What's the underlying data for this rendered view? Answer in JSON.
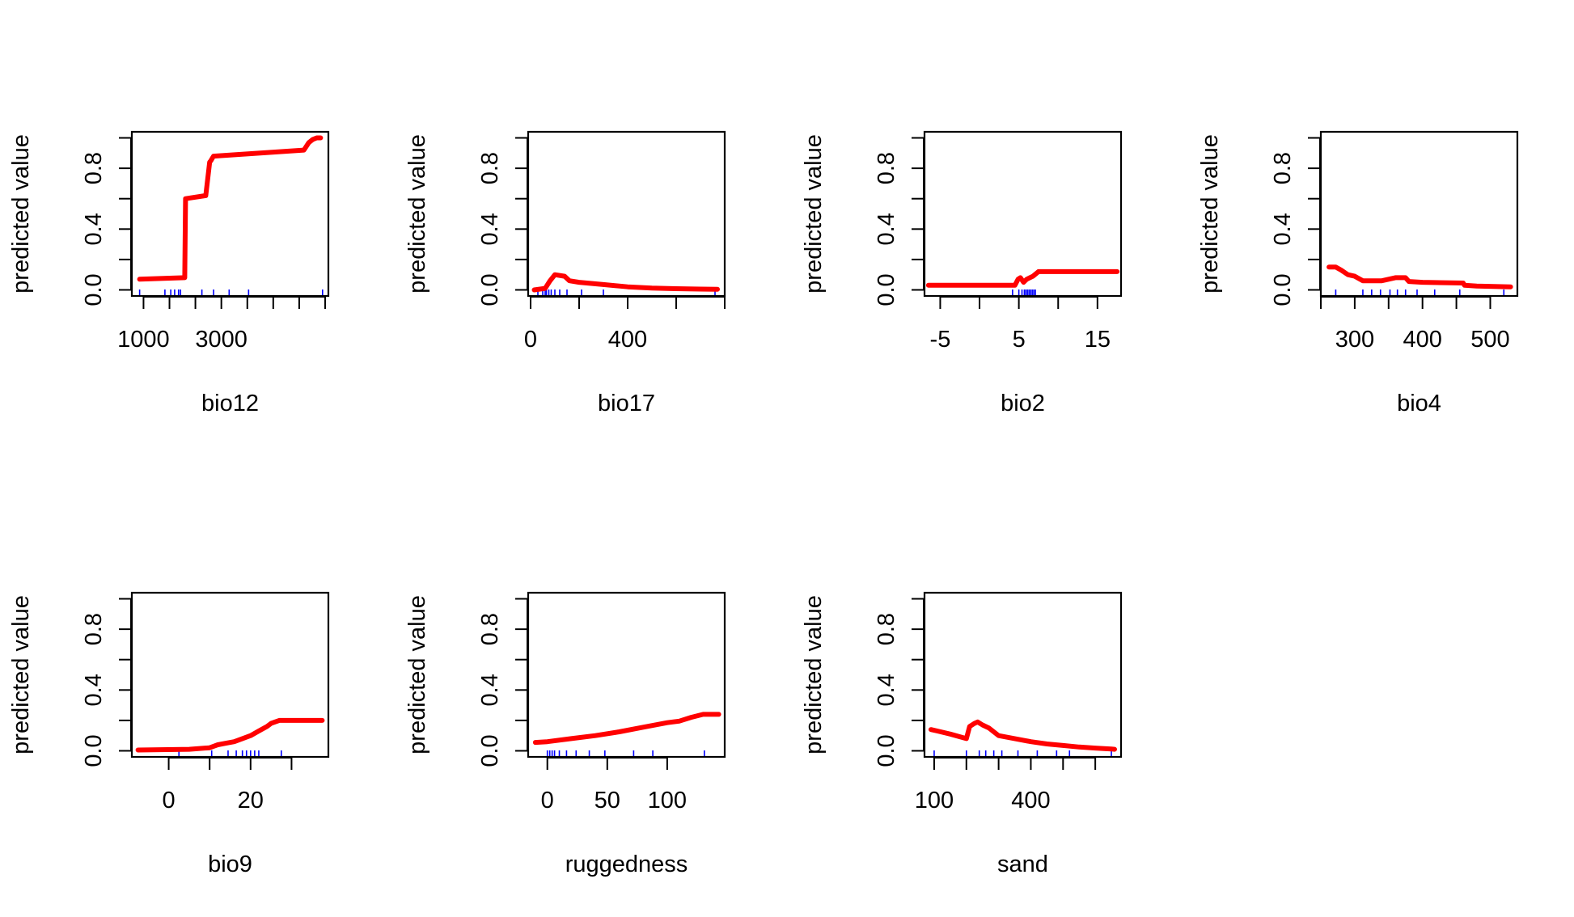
{
  "colors": {
    "curve": "#ff0000",
    "rug": "#0000ff",
    "axis": "#000000"
  },
  "chart_data": [
    {
      "type": "line",
      "xlabel": "bio12",
      "ylabel": "predicted value",
      "xlim": [
        700,
        5750
      ],
      "ylim": [
        0,
        1
      ],
      "xticks": [
        1000,
        1667,
        2333,
        3000,
        3667,
        4333,
        5000,
        5667
      ],
      "xtick_labels": [
        "1000",
        "",
        "",
        "3000",
        "",
        "",
        "",
        ""
      ],
      "yticks": [
        0.0,
        0.2,
        0.4,
        0.6,
        0.8,
        1.0
      ],
      "ytick_labels": [
        "0.0",
        "",
        "0.4",
        "",
        "0.8",
        ""
      ],
      "x": [
        900,
        2060,
        2080,
        2600,
        2700,
        2730,
        2800,
        5120,
        5250,
        5350,
        5450,
        5550
      ],
      "y": [
        0.07,
        0.08,
        0.6,
        0.62,
        0.84,
        0.85,
        0.88,
        0.92,
        0.97,
        0.99,
        1.0,
        1.0
      ],
      "rug": [
        900,
        1550,
        1700,
        1800,
        1900,
        1950,
        2500,
        2800,
        3200,
        3700,
        5600
      ]
    },
    {
      "type": "line",
      "xlabel": "bio17",
      "ylabel": "predicted value",
      "xlim": [
        -10,
        800
      ],
      "ylim": [
        0,
        1
      ],
      "xticks": [
        0,
        200,
        400,
        600,
        800
      ],
      "xtick_labels": [
        "0",
        "",
        "400",
        "",
        ""
      ],
      "yticks": [
        0.0,
        0.2,
        0.4,
        0.6,
        0.8,
        1.0
      ],
      "ytick_labels": [
        "0.0",
        "",
        "0.4",
        "",
        "0.8",
        ""
      ],
      "x": [
        15,
        60,
        80,
        100,
        140,
        160,
        200,
        300,
        400,
        500,
        600,
        700,
        770
      ],
      "y": [
        0.0,
        0.01,
        0.06,
        0.1,
        0.09,
        0.06,
        0.05,
        0.035,
        0.02,
        0.012,
        0.008,
        0.005,
        0.004
      ],
      "rug": [
        30,
        50,
        60,
        65,
        75,
        85,
        100,
        120,
        150,
        210,
        300,
        760
      ]
    },
    {
      "type": "line",
      "xlabel": "bio2",
      "ylabel": "predicted value",
      "xlim": [
        -7,
        18
      ],
      "ylim": [
        0,
        1
      ],
      "xticks": [
        -5,
        0,
        5,
        10,
        15
      ],
      "xtick_labels": [
        "-5",
        "",
        "5",
        "",
        "15"
      ],
      "yticks": [
        0.0,
        0.2,
        0.4,
        0.6,
        0.8,
        1.0
      ],
      "ytick_labels": [
        "0.0",
        "",
        "0.4",
        "",
        "0.8",
        ""
      ],
      "x": [
        -6.5,
        4.5,
        4.9,
        5.2,
        5.6,
        6.0,
        6.8,
        7.5,
        17.5
      ],
      "y": [
        0.03,
        0.03,
        0.07,
        0.08,
        0.05,
        0.07,
        0.09,
        0.12,
        0.12
      ],
      "rug": [
        4.2,
        5.0,
        5.4,
        5.7,
        5.9,
        6.1,
        6.3,
        6.5,
        6.7,
        6.9,
        7.1
      ]
    },
    {
      "type": "line",
      "xlabel": "bio4",
      "ylabel": "predicted value",
      "xlim": [
        250,
        540
      ],
      "ylim": [
        0,
        1
      ],
      "xticks": [
        250,
        300,
        350,
        400,
        450,
        500
      ],
      "xtick_labels": [
        "",
        "300",
        "",
        "400",
        "",
        "500"
      ],
      "yticks": [
        0.0,
        0.2,
        0.4,
        0.6,
        0.8,
        1.0
      ],
      "ytick_labels": [
        "0.0",
        "",
        "0.4",
        "",
        "0.8",
        ""
      ],
      "x": [
        262,
        272,
        280,
        290,
        300,
        312,
        320,
        340,
        350,
        360,
        375,
        380,
        400,
        460,
        462,
        480,
        530
      ],
      "y": [
        0.15,
        0.15,
        0.13,
        0.1,
        0.09,
        0.06,
        0.06,
        0.06,
        0.07,
        0.08,
        0.08,
        0.055,
        0.05,
        0.045,
        0.03,
        0.025,
        0.02
      ],
      "rug": [
        272,
        312,
        325,
        338,
        352,
        363,
        375,
        392,
        418,
        455,
        520
      ]
    },
    {
      "type": "line",
      "xlabel": "bio9",
      "ylabel": "predicted value",
      "xlim": [
        -9,
        39
      ],
      "ylim": [
        0,
        1
      ],
      "xticks": [
        0,
        10,
        20,
        30
      ],
      "xtick_labels": [
        "0",
        "",
        "20",
        ""
      ],
      "yticks": [
        0.0,
        0.2,
        0.4,
        0.6,
        0.8,
        1.0
      ],
      "ytick_labels": [
        "0.0",
        "",
        "0.4",
        "",
        "0.8",
        ""
      ],
      "x": [
        -7.5,
        5,
        10,
        11,
        12,
        14,
        16,
        18,
        20,
        22,
        24,
        25,
        27,
        29,
        37.5
      ],
      "y": [
        0.005,
        0.01,
        0.02,
        0.03,
        0.04,
        0.05,
        0.06,
        0.08,
        0.1,
        0.13,
        0.16,
        0.18,
        0.2,
        0.2,
        0.2
      ],
      "rug": [
        2.5,
        10.5,
        14.5,
        16.5,
        18,
        19,
        20,
        21,
        22,
        27.5
      ]
    },
    {
      "type": "line",
      "xlabel": "ruggedness",
      "ylabel": "predicted value",
      "xlim": [
        -16,
        148
      ],
      "ylim": [
        0,
        1
      ],
      "xticks": [
        0,
        50,
        100
      ],
      "xtick_labels": [
        "0",
        "50",
        "100"
      ],
      "yticks": [
        0.0,
        0.2,
        0.4,
        0.6,
        0.8,
        1.0
      ],
      "ytick_labels": [
        "0.0",
        "",
        "0.4",
        "",
        "0.8",
        ""
      ],
      "x": [
        -10,
        0,
        20,
        40,
        60,
        80,
        100,
        110,
        120,
        130,
        143
      ],
      "y": [
        0.055,
        0.06,
        0.08,
        0.1,
        0.125,
        0.155,
        0.185,
        0.195,
        0.22,
        0.24,
        0.24
      ],
      "rug": [
        0,
        2,
        4,
        6,
        10,
        16,
        24,
        35,
        48,
        72,
        88,
        131
      ]
    },
    {
      "type": "line",
      "xlabel": "sand",
      "ylabel": "predicted value",
      "xlim": [
        70,
        680
      ],
      "ylim": [
        0,
        1
      ],
      "xticks": [
        100,
        200,
        300,
        400,
        500,
        600
      ],
      "xtick_labels": [
        "100",
        "",
        "",
        "400",
        "",
        ""
      ],
      "yticks": [
        0.0,
        0.2,
        0.4,
        0.6,
        0.8,
        1.0
      ],
      "ytick_labels": [
        "0.0",
        "",
        "0.4",
        "",
        "0.8",
        ""
      ],
      "x": [
        90,
        110,
        150,
        200,
        210,
        225,
        235,
        250,
        270,
        300,
        350,
        400,
        450,
        500,
        550,
        600,
        650,
        660
      ],
      "y": [
        0.14,
        0.13,
        0.11,
        0.08,
        0.16,
        0.18,
        0.19,
        0.17,
        0.15,
        0.1,
        0.08,
        0.06,
        0.045,
        0.035,
        0.025,
        0.018,
        0.012,
        0.01
      ],
      "rug": [
        100,
        200,
        240,
        260,
        285,
        310,
        360,
        420,
        480,
        520,
        650
      ]
    }
  ]
}
